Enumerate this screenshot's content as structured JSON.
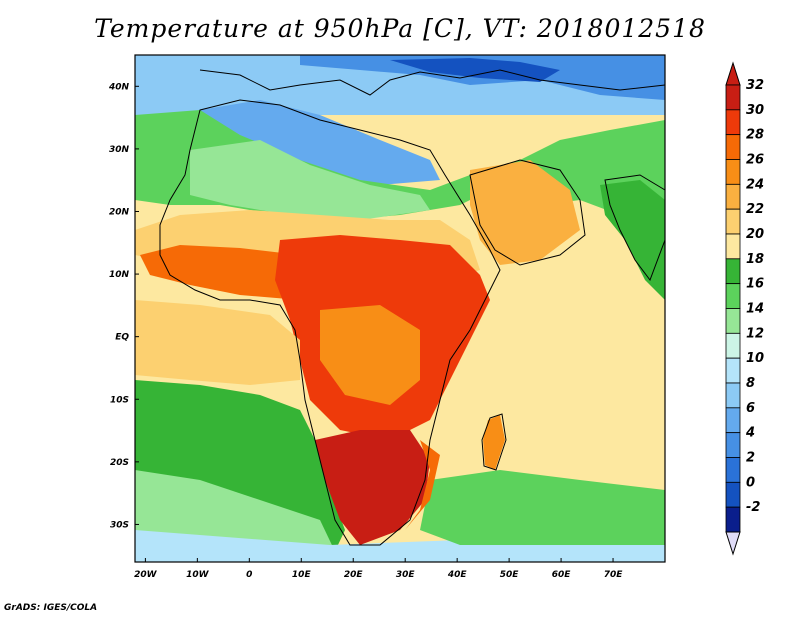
{
  "title": "Temperature at 950hPa [C], VT: 2018012518",
  "credit": "GrADS: IGES/COLA",
  "colors": {
    "land_outline": "#000000",
    "frame": "#000000"
  },
  "map": {
    "projection": "latlon",
    "lon_range": [
      -22,
      80
    ],
    "lat_range": [
      -36,
      45
    ],
    "lon_ticks": [
      {
        "value": -20,
        "label": "20W"
      },
      {
        "value": -10,
        "label": "10W"
      },
      {
        "value": 0,
        "label": "0"
      },
      {
        "value": 10,
        "label": "10E"
      },
      {
        "value": 20,
        "label": "20E"
      },
      {
        "value": 30,
        "label": "30E"
      },
      {
        "value": 40,
        "label": "40E"
      },
      {
        "value": 50,
        "label": "50E"
      },
      {
        "value": 60,
        "label": "60E"
      },
      {
        "value": 70,
        "label": "70E"
      }
    ],
    "lat_ticks": [
      {
        "value": 40,
        "label": "40N"
      },
      {
        "value": 30,
        "label": "30N"
      },
      {
        "value": 20,
        "label": "20N"
      },
      {
        "value": 10,
        "label": "10N"
      },
      {
        "value": 0,
        "label": "EQ"
      },
      {
        "value": -10,
        "label": "10S"
      },
      {
        "value": -20,
        "label": "20S"
      },
      {
        "value": -30,
        "label": "30S"
      }
    ]
  },
  "colorbar": {
    "levels": [
      {
        "label": "32",
        "color": "#c81e14"
      },
      {
        "label": "30",
        "color": "#ee3a0a"
      },
      {
        "label": "28",
        "color": "#f66a06"
      },
      {
        "label": "26",
        "color": "#f88e16"
      },
      {
        "label": "24",
        "color": "#fab040"
      },
      {
        "label": "22",
        "color": "#fcd070"
      },
      {
        "label": "20",
        "color": "#fde8a0"
      },
      {
        "label": "18",
        "color": "#36b436"
      },
      {
        "label": "16",
        "color": "#5cd25c"
      },
      {
        "label": "14",
        "color": "#96e696"
      },
      {
        "label": "12",
        "color": "#ccf5e6"
      },
      {
        "label": "10",
        "color": "#b4e4fa"
      },
      {
        "label": "8",
        "color": "#8ccaf5"
      },
      {
        "label": "6",
        "color": "#64aaee"
      },
      {
        "label": "4",
        "color": "#4690e4"
      },
      {
        "label": "2",
        "color": "#2a72d8"
      },
      {
        "label": "0",
        "color": "#1452c0"
      },
      {
        "label": "-2",
        "color": "#0a1e8c"
      }
    ],
    "top_arrow_color": "#c81e14",
    "bottom_arrow_color": "#e0dcf8",
    "top_label": "32",
    "bottom_label": "-2"
  },
  "regions": [
    {
      "name": "sea-background",
      "color": "#fde8a0"
    },
    {
      "name": "mediterranean-cold",
      "color": "#64aaee"
    },
    {
      "name": "europe-cold",
      "color": "#2a72d8"
    },
    {
      "name": "north-africa-green",
      "color": "#5cd25c"
    },
    {
      "name": "sahara-light",
      "color": "#96e696"
    },
    {
      "name": "atlantic-south-green",
      "color": "#36b436"
    },
    {
      "name": "sahel-warm",
      "color": "#fcd070"
    },
    {
      "name": "central-africa-hot",
      "color": "#ee3a0a"
    },
    {
      "name": "southern-africa-hot",
      "color": "#c81e14"
    },
    {
      "name": "arabia-warm",
      "color": "#fab040"
    }
  ]
}
